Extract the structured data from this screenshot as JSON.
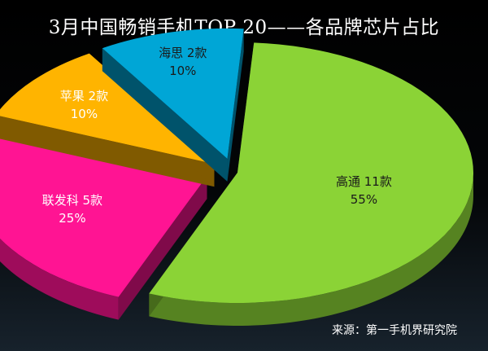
{
  "chart_data": {
    "type": "pie",
    "title": "3月中国畅销手机TOP 20——各品牌芯片占比",
    "slices": [
      {
        "label": "高通",
        "count_label": "11款",
        "value": 55,
        "percent_label": "55%",
        "color": "#8bd336",
        "label_color": "#1a1a1a"
      },
      {
        "label": "联发科",
        "count_label": "5款",
        "value": 25,
        "percent_label": "25%",
        "color": "#ff1493",
        "label_color": "#ffffff"
      },
      {
        "label": "苹果",
        "count_label": "2款",
        "value": 10,
        "percent_label": "10%",
        "color": "#ffb400",
        "label_color": "#ffffff"
      },
      {
        "label": "海思",
        "count_label": "2款",
        "value": 10,
        "percent_label": "10%",
        "color": "#00a6d6",
        "label_color": "#1a1a1a"
      }
    ],
    "source": "来源：第一手机界研究院"
  }
}
